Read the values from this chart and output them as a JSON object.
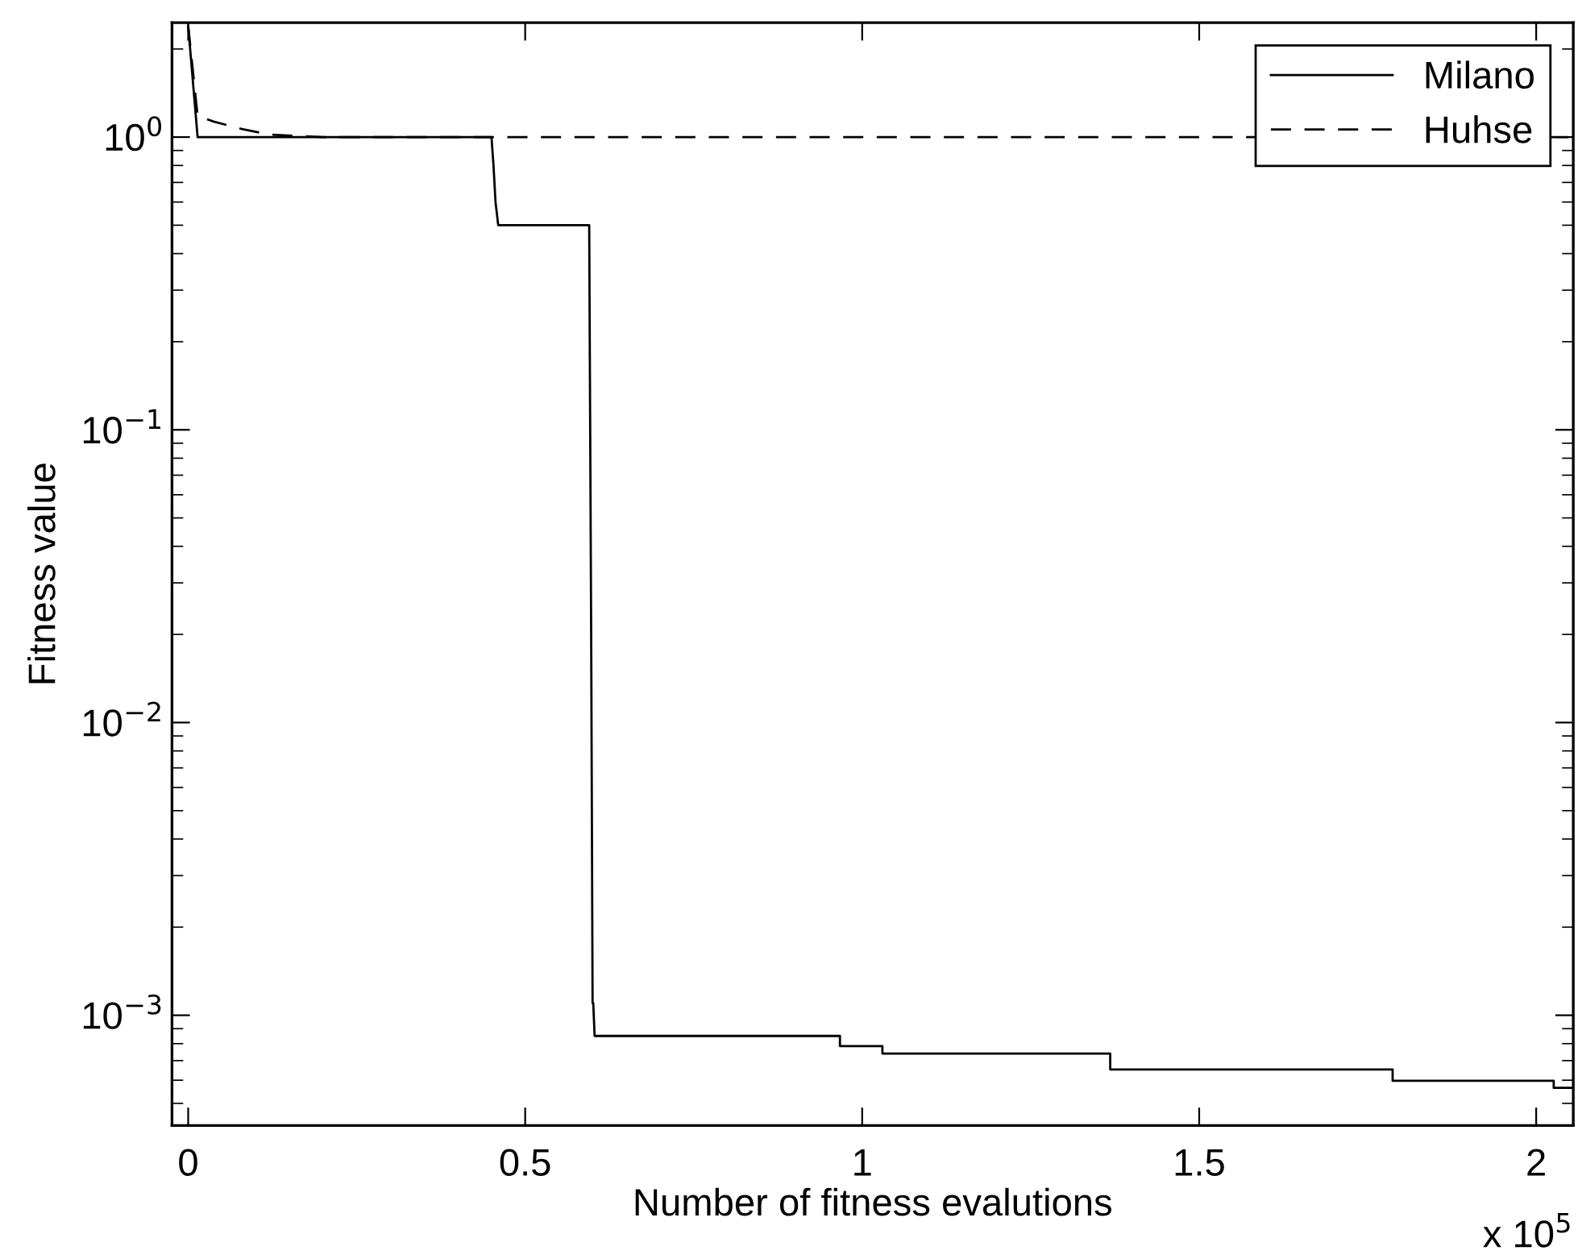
{
  "chart_data": {
    "type": "line",
    "xlabel": "Number of fitness evalutions",
    "ylabel": "Fitness value",
    "log": "y",
    "xlim": [
      -0.024,
      2.055
    ],
    "ylim": [
      0.00042,
      2.46
    ],
    "xticks": [
      0,
      0.5,
      1,
      1.5,
      2
    ],
    "yticks": [
      {
        "value": 0.001,
        "label": "10$^{−3}$"
      },
      {
        "value": 0.01,
        "label": "10$^{−2}$"
      },
      {
        "value": 0.1,
        "label": "10$^{−1}$"
      },
      {
        "value": 1,
        "label": "10$^{0}$"
      }
    ],
    "annotations": [
      "x 10$^{5}$"
    ],
    "legend": "top right",
    "grid": false,
    "marker": "none",
    "series": [
      {
        "name": "Milano",
        "color": "#000000",
        "line_style": "solid",
        "x": [
          0,
          0.014,
          0.45,
          0.453,
          0.456,
          0.46,
          0.595,
          0.598,
          0.6,
          0.601,
          0.603,
          0.967,
          0.967,
          1.03,
          1.03,
          1.368,
          1.368,
          1.787,
          1.787,
          2.026,
          2.026,
          2.055
        ],
        "values": [
          2.4,
          1.0,
          1.0,
          0.8,
          0.6,
          0.5,
          0.5,
          0.018,
          0.0011,
          0.0011,
          0.00085,
          0.00085,
          0.000785,
          0.000785,
          0.00074,
          0.00074,
          0.000653,
          0.000653,
          0.000597,
          0.000597,
          0.000565,
          0.000565
        ]
      },
      {
        "name": "Huhse",
        "color": "#000000",
        "line_style": "dashed",
        "x": [
          0,
          0.014,
          0.038,
          0.08,
          0.12,
          0.2,
          2.055
        ],
        "values": [
          2.4,
          1.18,
          1.13,
          1.065,
          1.02,
          1.0,
          1.0
        ]
      }
    ]
  }
}
